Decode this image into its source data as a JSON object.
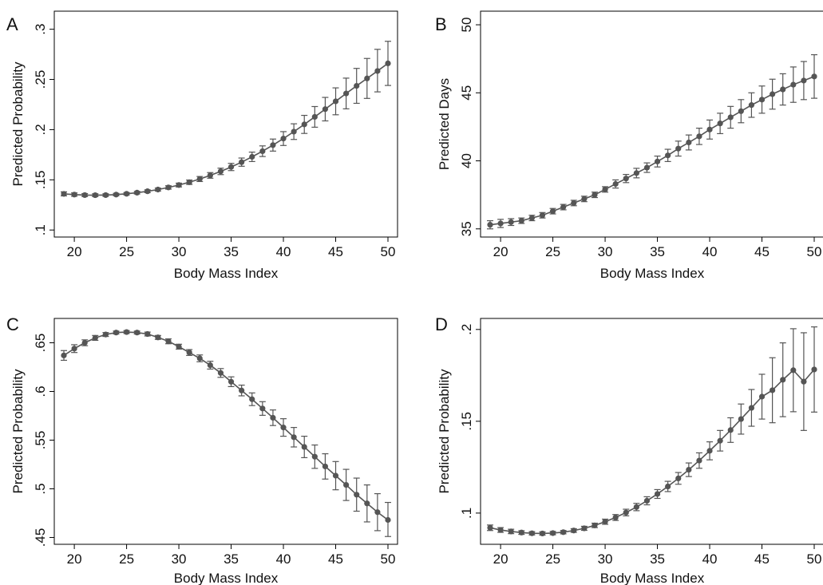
{
  "chart_data": [
    {
      "panel": "A",
      "type": "line",
      "xlabel": "Body Mass Index",
      "ylabel": "Predicted Probability",
      "xlim": [
        19,
        50
      ],
      "ylim": [
        0.093,
        0.318
      ],
      "xticks": [
        "20",
        "25",
        "30",
        "35",
        "40",
        "45",
        "50"
      ],
      "yticks": [
        ".1",
        ".15",
        ".2",
        ".25",
        ".3"
      ],
      "grid": false,
      "legend": "none",
      "x": [
        19,
        20,
        21,
        22,
        23,
        24,
        25,
        26,
        27,
        28,
        29,
        30,
        31,
        32,
        33,
        34,
        35,
        36,
        37,
        38,
        39,
        40,
        41,
        42,
        43,
        44,
        45,
        46,
        47,
        48,
        49,
        50
      ],
      "values": [
        0.136,
        0.1353,
        0.1348,
        0.1347,
        0.1348,
        0.1353,
        0.1361,
        0.1372,
        0.1386,
        0.1403,
        0.1424,
        0.1448,
        0.1476,
        0.1508,
        0.1544,
        0.1584,
        0.1628,
        0.1676,
        0.1729,
        0.1785,
        0.1846,
        0.1911,
        0.198,
        0.2052,
        0.2127,
        0.2204,
        0.2282,
        0.236,
        0.2436,
        0.251,
        0.2584,
        0.266
      ],
      "lower": [
        0.134,
        0.1336,
        0.1333,
        0.1333,
        0.1335,
        0.1341,
        0.1349,
        0.1359,
        0.1372,
        0.1388,
        0.1407,
        0.1429,
        0.1454,
        0.1483,
        0.1516,
        0.1552,
        0.1592,
        0.1635,
        0.1682,
        0.1732,
        0.1786,
        0.1842,
        0.1902,
        0.1962,
        0.2024,
        0.2087,
        0.2148,
        0.2207,
        0.2262,
        0.2311,
        0.2376,
        0.244
      ],
      "upper": [
        0.138,
        0.137,
        0.1363,
        0.1361,
        0.1361,
        0.1365,
        0.1373,
        0.1385,
        0.14,
        0.1418,
        0.1441,
        0.1467,
        0.1498,
        0.1533,
        0.1572,
        0.1616,
        0.1664,
        0.1717,
        0.1776,
        0.1838,
        0.1906,
        0.198,
        0.2058,
        0.2142,
        0.223,
        0.2321,
        0.2416,
        0.2513,
        0.261,
        0.2709,
        0.28,
        0.288
      ]
    },
    {
      "panel": "B",
      "type": "line",
      "xlabel": "Body Mass Index",
      "ylabel": "Predicted Days",
      "xlim": [
        19,
        50
      ],
      "ylim": [
        34.4,
        51.0
      ],
      "xticks": [
        "20",
        "25",
        "30",
        "35",
        "40",
        "45",
        "50"
      ],
      "yticks": [
        "35",
        "40",
        "45",
        "50"
      ],
      "grid": false,
      "legend": "none",
      "x": [
        19,
        20,
        21,
        22,
        23,
        24,
        25,
        26,
        27,
        28,
        29,
        30,
        31,
        32,
        33,
        34,
        35,
        36,
        37,
        38,
        39,
        40,
        41,
        42,
        43,
        44,
        45,
        46,
        47,
        48,
        49,
        50
      ],
      "values": [
        35.3,
        35.4,
        35.5,
        35.6,
        35.8,
        36.0,
        36.3,
        36.6,
        36.9,
        37.2,
        37.5,
        37.9,
        38.3,
        38.7,
        39.1,
        39.5,
        39.95,
        40.4,
        40.9,
        41.35,
        41.8,
        42.3,
        42.75,
        43.2,
        43.65,
        44.1,
        44.5,
        44.9,
        45.25,
        45.6,
        45.9,
        46.2
      ],
      "lower": [
        35.0,
        35.1,
        35.25,
        35.4,
        35.6,
        35.8,
        36.1,
        36.4,
        36.7,
        37.0,
        37.3,
        37.7,
        38.0,
        38.4,
        38.75,
        39.15,
        39.55,
        39.95,
        40.35,
        40.8,
        41.2,
        41.6,
        42.0,
        42.4,
        42.8,
        43.2,
        43.5,
        43.8,
        44.1,
        44.3,
        44.5,
        44.6
      ],
      "upper": [
        35.6,
        35.7,
        35.75,
        35.8,
        36.0,
        36.2,
        36.5,
        36.8,
        37.1,
        37.4,
        37.7,
        38.1,
        38.6,
        39.0,
        39.45,
        39.85,
        40.35,
        40.85,
        41.45,
        41.9,
        42.4,
        43.0,
        43.5,
        44.0,
        44.5,
        45.0,
        45.5,
        46.0,
        46.4,
        46.9,
        47.3,
        47.8
      ]
    },
    {
      "panel": "C",
      "type": "line",
      "xlabel": "Body Mass Index",
      "ylabel": "Predicted Probability",
      "xlim": [
        19,
        50
      ],
      "ylim": [
        0.443,
        0.675
      ],
      "xticks": [
        "20",
        "25",
        "30",
        "35",
        "40",
        "45",
        "50"
      ],
      "yticks": [
        ".45",
        ".5",
        ".55",
        ".6",
        ".65"
      ],
      "grid": false,
      "legend": "none",
      "x": [
        19,
        20,
        21,
        22,
        23,
        24,
        25,
        26,
        27,
        28,
        29,
        30,
        31,
        32,
        33,
        34,
        35,
        36,
        37,
        38,
        39,
        40,
        41,
        42,
        43,
        44,
        45,
        46,
        47,
        48,
        49,
        50
      ],
      "values": [
        0.637,
        0.644,
        0.65,
        0.655,
        0.6585,
        0.6605,
        0.661,
        0.6605,
        0.659,
        0.6555,
        0.6515,
        0.646,
        0.64,
        0.634,
        0.627,
        0.619,
        0.61,
        0.601,
        0.592,
        0.5825,
        0.573,
        0.563,
        0.553,
        0.543,
        0.533,
        0.523,
        0.5135,
        0.504,
        0.494,
        0.485,
        0.476,
        0.468
      ],
      "lower": [
        0.632,
        0.64,
        0.647,
        0.6525,
        0.6565,
        0.659,
        0.6595,
        0.659,
        0.657,
        0.6535,
        0.649,
        0.6435,
        0.637,
        0.6305,
        0.623,
        0.6145,
        0.605,
        0.5955,
        0.5855,
        0.5755,
        0.565,
        0.554,
        0.543,
        0.532,
        0.521,
        0.51,
        0.499,
        0.488,
        0.477,
        0.466,
        0.457,
        0.451
      ],
      "upper": [
        0.642,
        0.648,
        0.653,
        0.6575,
        0.6605,
        0.662,
        0.6625,
        0.662,
        0.661,
        0.6575,
        0.654,
        0.6485,
        0.643,
        0.6375,
        0.631,
        0.6235,
        0.615,
        0.6065,
        0.5985,
        0.5895,
        0.581,
        0.572,
        0.563,
        0.554,
        0.545,
        0.536,
        0.528,
        0.52,
        0.511,
        0.504,
        0.495,
        0.486
      ]
    },
    {
      "panel": "D",
      "type": "line",
      "xlabel": "Body Mass Index",
      "ylabel": "Predicted Probability",
      "xlim": [
        19,
        50
      ],
      "ylim": [
        0.083,
        0.206
      ],
      "xticks": [
        "20",
        "25",
        "30",
        "35",
        "40",
        "45",
        "50"
      ],
      "yticks": [
        ".1",
        ".15",
        ".2"
      ],
      "grid": false,
      "legend": "none",
      "x": [
        19,
        20,
        21,
        22,
        23,
        24,
        25,
        26,
        27,
        28,
        29,
        30,
        31,
        32,
        33,
        34,
        35,
        36,
        37,
        38,
        39,
        40,
        41,
        42,
        43,
        44,
        45,
        46,
        47,
        48,
        49,
        50
      ],
      "values": [
        0.092,
        0.0908,
        0.09,
        0.0894,
        0.089,
        0.0889,
        0.0891,
        0.0896,
        0.0905,
        0.0917,
        0.0933,
        0.0953,
        0.0976,
        0.1003,
        0.1033,
        0.1067,
        0.1104,
        0.1145,
        0.1189,
        0.1236,
        0.1286,
        0.1339,
        0.1394,
        0.1452,
        0.1512,
        0.1573,
        0.1634,
        0.1669,
        0.1726,
        0.1778,
        0.1716,
        0.1782
      ],
      "lower": [
        0.0905,
        0.0895,
        0.0888,
        0.0884,
        0.0881,
        0.088,
        0.0882,
        0.0887,
        0.0895,
        0.0906,
        0.0921,
        0.0939,
        0.096,
        0.0985,
        0.1013,
        0.1045,
        0.108,
        0.1117,
        0.1157,
        0.1199,
        0.1244,
        0.129,
        0.1338,
        0.1385,
        0.143,
        0.1473,
        0.1512,
        0.1492,
        0.1525,
        0.1552,
        0.145,
        0.155
      ],
      "upper": [
        0.0935,
        0.0921,
        0.0912,
        0.0904,
        0.0899,
        0.0898,
        0.09,
        0.0905,
        0.0915,
        0.0928,
        0.0945,
        0.0967,
        0.0992,
        0.1021,
        0.1053,
        0.1089,
        0.1128,
        0.1173,
        0.1221,
        0.1273,
        0.1328,
        0.1388,
        0.145,
        0.1519,
        0.1594,
        0.1673,
        0.1756,
        0.1846,
        0.1927,
        0.2004,
        0.1982,
        0.2014
      ]
    }
  ],
  "style": {
    "series_color": "#555555",
    "axis_color": "#000000"
  }
}
